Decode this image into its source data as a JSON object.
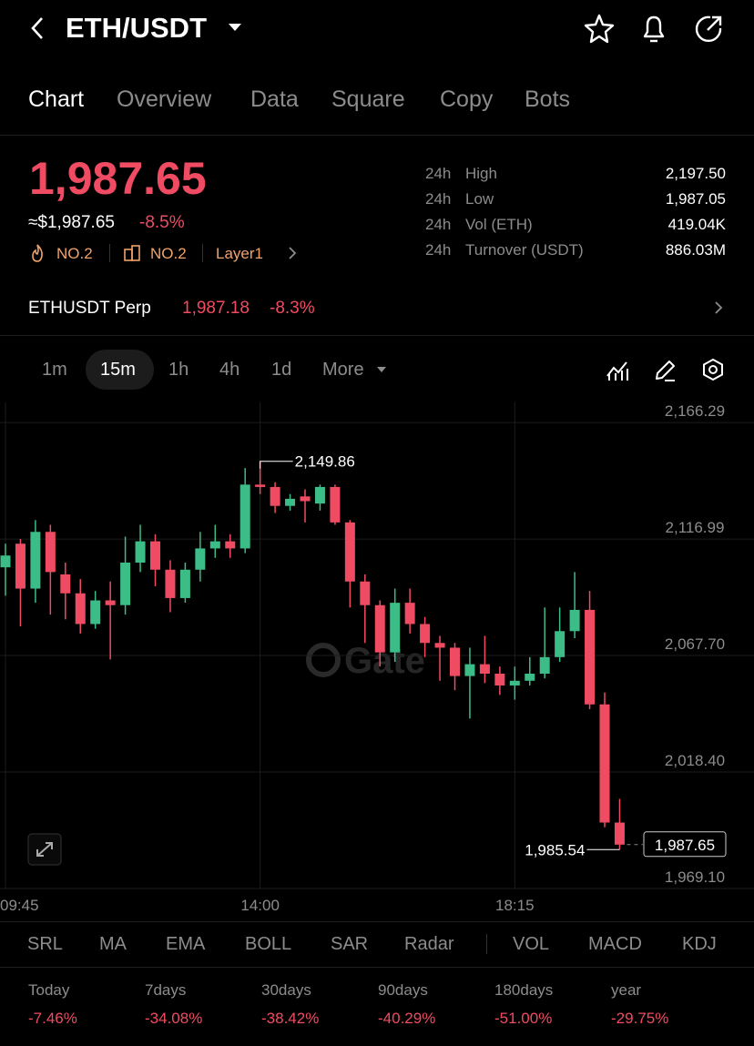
{
  "header": {
    "title": "ETH/USDT"
  },
  "tabs": [
    "Chart",
    "Overview",
    "Data",
    "Square",
    "Copy",
    "Bots"
  ],
  "price": {
    "last": "1,987.65",
    "usd": "≈$1,987.65",
    "change": "-8.5%",
    "tags": [
      "NO.2",
      "NO.2",
      "Layer1"
    ]
  },
  "stats": [
    {
      "period": "24h",
      "label": "High",
      "value": "2,197.50"
    },
    {
      "period": "24h",
      "label": "Low",
      "value": "1,987.05"
    },
    {
      "period": "24h",
      "label": "Vol (ETH)",
      "value": "419.04K"
    },
    {
      "period": "24h",
      "label": "Turnover (USDT)",
      "value": "886.03M"
    }
  ],
  "perp": {
    "name": "ETHUSDT Perp",
    "price": "1,987.18",
    "change": "-8.3%"
  },
  "timeframes": [
    "1m",
    "15m",
    "1h",
    "4h",
    "1d",
    "More"
  ],
  "chart_data": {
    "type": "candlestick",
    "watermark": "Gate",
    "categories": [
      "09:45",
      null,
      null,
      null,
      null,
      null,
      null,
      null,
      null,
      null,
      null,
      null,
      null,
      null,
      null,
      null,
      null,
      "14:00",
      null,
      null,
      null,
      null,
      null,
      null,
      null,
      null,
      null,
      null,
      null,
      null,
      null,
      null,
      null,
      null,
      "18:15",
      null,
      null,
      null,
      null,
      null,
      null,
      null
    ],
    "open": [
      2105,
      2115,
      2096,
      2120,
      2102,
      2094,
      2081,
      2091,
      2089,
      2107,
      2116,
      2104,
      2092,
      2104,
      2113,
      2116,
      2113,
      2140,
      2139,
      2131,
      2135,
      2132,
      2139,
      2124,
      2099,
      2089,
      2069,
      2090,
      2081,
      2073,
      2071,
      2059,
      2064,
      2060,
      2055,
      2057,
      2060,
      2067,
      2078,
      2087,
      2047,
      1997
    ],
    "high": [
      2115,
      2117,
      2125,
      2123,
      2107,
      2100,
      2095,
      2099,
      2118,
      2123,
      2119,
      2108,
      2107,
      2120,
      2123,
      2119,
      2147,
      2149.86,
      2141,
      2136,
      2138,
      2140,
      2140,
      2125,
      2102,
      2091,
      2096,
      2096,
      2084,
      2076,
      2073,
      2071,
      2076,
      2063,
      2063,
      2067,
      2088,
      2088,
      2103,
      2095,
      2052,
      2007
    ],
    "low": [
      2093,
      2080,
      2090,
      2085,
      2083,
      2077,
      2079,
      2066,
      2085,
      2103,
      2097,
      2086,
      2090,
      2099,
      2109,
      2109,
      2111,
      2136,
      2128,
      2129,
      2124,
      2129,
      2123,
      2088,
      2073,
      2063,
      2065,
      2077,
      2067,
      2057,
      2053,
      2041,
      2056,
      2051,
      2049,
      2055,
      2058,
      2065,
      2075,
      2045,
      1995,
      1985.54
    ],
    "close": [
      2110,
      2096,
      2120,
      2103,
      2094,
      2081,
      2091,
      2089,
      2107,
      2116,
      2104,
      2092,
      2104,
      2113,
      2116,
      2113,
      2140,
      2139,
      2131,
      2134,
      2133,
      2139,
      2124,
      2099,
      2089,
      2069,
      2090,
      2081,
      2073,
      2071,
      2059,
      2064,
      2060,
      2055,
      2057,
      2060,
      2067,
      2078,
      2087,
      2047,
      1997,
      1987.65
    ],
    "up_color": "#3cbc86",
    "down_color": "#ef4b62",
    "ylim": [
      1968.7,
      2174.8
    ],
    "yticks": [
      {
        "value": 2166.29,
        "label": "2,166.29"
      },
      {
        "value": 2116.99,
        "label": "2,116.99"
      },
      {
        "value": 2067.7,
        "label": "2,067.70"
      },
      {
        "value": 2018.4,
        "label": "2,018.40"
      },
      {
        "value": 1969.1,
        "label": "1,969.10"
      }
    ],
    "grid": true,
    "max_label": {
      "value": 2149.86,
      "label": "2,149.86"
    },
    "min_label": {
      "value": 1985.54,
      "label": "1,985.54"
    },
    "last_price": {
      "value": 1987.65,
      "label": "1,987.65"
    }
  },
  "indicators": [
    "SRL",
    "MA",
    "EMA",
    "BOLL",
    "SAR",
    "Radar",
    "VOL",
    "MACD",
    "KDJ"
  ],
  "performance": [
    {
      "label": "Today",
      "value": "-7.46%"
    },
    {
      "label": "7days",
      "value": "-34.08%"
    },
    {
      "label": "30days",
      "value": "-38.42%"
    },
    {
      "label": "90days",
      "value": "-40.29%"
    },
    {
      "label": "180days",
      "value": "-51.00%"
    },
    {
      "label": "year",
      "value": "-29.75%"
    }
  ]
}
